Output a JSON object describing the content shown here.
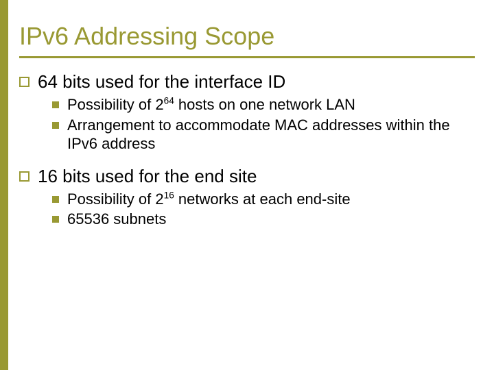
{
  "colors": {
    "accent": "#999933",
    "text": "#000000",
    "background": "#ffffff"
  },
  "title": "IPv6 Addressing Scope",
  "title_fontsize": 36,
  "body_fontsize_l1": 26,
  "body_fontsize_l2": 22,
  "items": [
    {
      "text": "64 bits used for the interface ID",
      "sub": [
        {
          "pre": "Possibility of 2",
          "sup": "64",
          "post": " hosts on one network LAN"
        },
        {
          "pre": "Arrangement to accommodate MAC addresses within the IPv6 address",
          "sup": "",
          "post": ""
        }
      ]
    },
    {
      "text": "16 bits used for the end site",
      "sub": [
        {
          "pre": "Possibility of 2",
          "sup": "16",
          "post": " networks at each end-site"
        },
        {
          "pre": "65536 subnets",
          "sup": "",
          "post": ""
        }
      ]
    }
  ]
}
